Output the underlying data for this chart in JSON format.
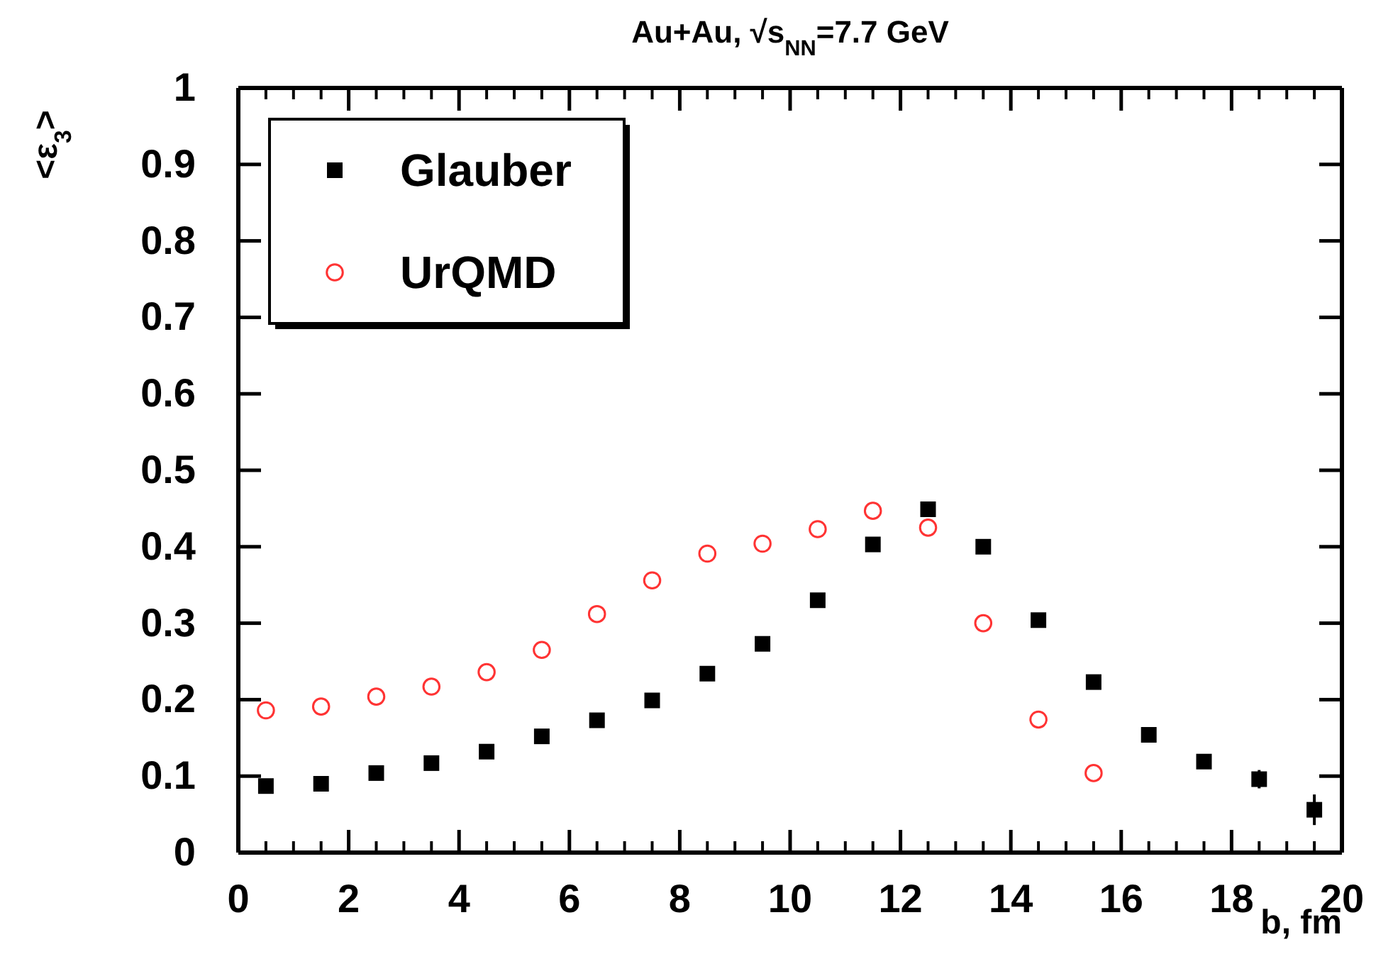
{
  "chart_data": {
    "type": "scatter",
    "title": "Au+Au,  √s$_{NN}$=7.7 GeV",
    "xlabel": "b, fm",
    "ylabel": "<ε$_{3}$>",
    "x": [
      0.5,
      1.5,
      2.5,
      3.5,
      4.5,
      5.5,
      6.5,
      7.5,
      8.5,
      9.5,
      10.5,
      11.5,
      12.5,
      13.5,
      14.5,
      15.5,
      16.5,
      17.5,
      18.5,
      19.5
    ],
    "xlim": [
      0,
      20
    ],
    "xticks": [
      0,
      2,
      4,
      6,
      8,
      10,
      12,
      14,
      16,
      18,
      20
    ],
    "ylim": [
      0,
      1
    ],
    "yticks": [
      0,
      0.1,
      0.2,
      0.3,
      0.4,
      0.5,
      0.6,
      0.7,
      0.8,
      0.9,
      1
    ],
    "legend": "top left",
    "series": [
      {
        "name": "Glauber",
        "color": "#000000",
        "marker": "square",
        "values": [
          0.087,
          0.09,
          0.104,
          0.117,
          0.132,
          0.152,
          0.173,
          0.199,
          0.234,
          0.273,
          0.33,
          0.403,
          0.449,
          0.4,
          0.304,
          0.223,
          0.154,
          0.119,
          0.096,
          0.056
        ],
        "errors": [
          null,
          null,
          null,
          null,
          null,
          null,
          null,
          null,
          null,
          null,
          null,
          null,
          null,
          null,
          null,
          null,
          null,
          null,
          0.012,
          0.02
        ]
      },
      {
        "name": "UrQMD",
        "color": "#ff3333",
        "marker": "circle",
        "values": [
          0.186,
          0.191,
          0.204,
          0.217,
          0.236,
          0.265,
          0.312,
          0.356,
          0.391,
          0.404,
          0.423,
          0.447,
          0.425,
          0.3,
          0.174,
          0.104,
          null,
          null,
          null,
          null
        ]
      }
    ]
  }
}
